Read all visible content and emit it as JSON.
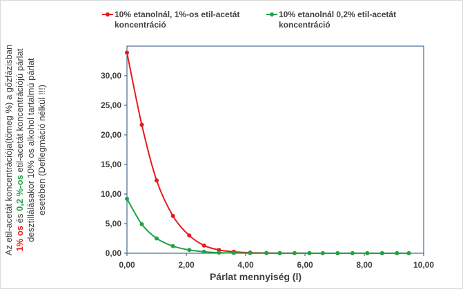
{
  "chart_data": {
    "type": "scatter",
    "xlabel": "Párlat mennyiség (l)",
    "ylabel": {
      "pre": "Az etil-acetát koncentrációja(tömeg %) a gőzfázisban ",
      "red": "1% os",
      "mid": " és ",
      "green": "0,2 %-os",
      "post": " etil-acetát koncentrációjú párlat desztillálásakor 10% os alkohol tartalmú párlat esetében (Deflegmáció nélkül !!!)"
    },
    "xlim": [
      0,
      10
    ],
    "ylim": [
      0,
      35
    ],
    "xticks": [
      0,
      2,
      4,
      6,
      8,
      10
    ],
    "yticks": [
      0,
      5,
      10,
      15,
      20,
      25,
      30
    ],
    "xtick_labels": [
      "0,00",
      "2,00",
      "4,00",
      "6,00",
      "8,00",
      "10,00"
    ],
    "ytick_labels": [
      "0,00",
      "5,00",
      "10,00",
      "15,00",
      "20,00",
      "25,00",
      "30,00"
    ],
    "grid": false,
    "legend_position": "top",
    "series": [
      {
        "name": "10% etanolnál, 1%-os etil-acetát koncentráció",
        "color": "#e8191c",
        "x": [
          0,
          0.5,
          1.0,
          1.55,
          2.1,
          2.6,
          3.1,
          3.6,
          4.15,
          4.7,
          5.15,
          5.65,
          6.15,
          6.6,
          7.1,
          7.6,
          8.1,
          8.6,
          9.1,
          9.5
        ],
        "y": [
          33.9,
          21.7,
          12.3,
          6.3,
          3.0,
          1.3,
          0.55,
          0.25,
          0.1,
          0.05,
          0.02,
          0.01,
          0.01,
          0,
          0,
          0,
          0,
          0,
          0,
          0
        ]
      },
      {
        "name": "10% etanolnál 0,2% etil-acetát koncentráció",
        "color": "#1fa346",
        "x": [
          0,
          0.5,
          1.0,
          1.55,
          2.1,
          2.6,
          3.1,
          3.6,
          4.15,
          4.7,
          5.15,
          5.65,
          6.15,
          6.6,
          7.1,
          7.6,
          8.1,
          8.6,
          9.1,
          9.5
        ],
        "y": [
          9.2,
          4.9,
          2.5,
          1.2,
          0.55,
          0.25,
          0.1,
          0.05,
          0.02,
          0.01,
          0,
          0,
          0,
          0,
          0,
          0,
          0,
          0,
          0,
          0
        ]
      }
    ]
  },
  "colors": {
    "axis": "#1f4e79",
    "text": "#404040"
  }
}
